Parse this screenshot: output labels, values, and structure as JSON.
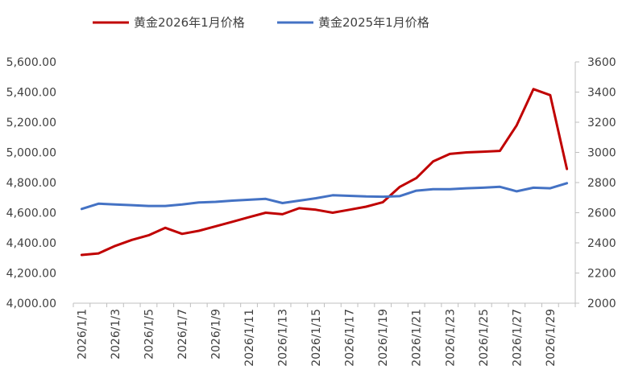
{
  "chart_data": {
    "type": "line",
    "x": [
      "2026/1/1",
      "2026/1/2",
      "2026/1/3",
      "2026/1/4",
      "2026/1/5",
      "2026/1/6",
      "2026/1/7",
      "2026/1/8",
      "2026/1/9",
      "2026/1/10",
      "2026/1/11",
      "2026/1/12",
      "2026/1/13",
      "2026/1/14",
      "2026/1/15",
      "2026/1/16",
      "2026/1/17",
      "2026/1/18",
      "2026/1/19",
      "2026/1/20",
      "2026/1/21",
      "2026/1/22",
      "2026/1/23",
      "2026/1/24",
      "2026/1/25",
      "2026/1/26",
      "2026/1/27",
      "2026/1/28",
      "2026/1/29",
      "2026/1/30"
    ],
    "x_tick_labels": [
      "2026/1/1",
      "2026/1/3",
      "2026/1/5",
      "2026/1/7",
      "2026/1/9",
      "2026/1/11",
      "2026/1/13",
      "2026/1/15",
      "2026/1/17",
      "2026/1/19",
      "2026/1/21",
      "2026/1/23",
      "2026/1/25",
      "2026/1/27",
      "2026/1/29"
    ],
    "series": [
      {
        "name": "黄金2026年1月价格",
        "axis": "left",
        "color": "#C00000",
        "values": [
          4320,
          4330,
          4380,
          4420,
          4450,
          4500,
          4460,
          4480,
          4510,
          4540,
          4570,
          4600,
          4590,
          4630,
          4620,
          4600,
          4620,
          4640,
          4670,
          4770,
          4830,
          4940,
          4990,
          5000,
          5005,
          5010,
          5180,
          5420,
          5380,
          4890
        ]
      },
      {
        "name": "黄金2025年1月价格",
        "axis": "right",
        "color": "#4472C4",
        "values": [
          2625,
          2660,
          2655,
          2650,
          2645,
          2645,
          2655,
          2668,
          2672,
          2680,
          2686,
          2692,
          2664,
          2680,
          2696,
          2716,
          2712,
          2708,
          2706,
          2710,
          2746,
          2756,
          2756,
          2762,
          2766,
          2772,
          2742,
          2766,
          2762,
          2796
        ]
      }
    ],
    "y_left": {
      "min": 4000,
      "max": 5600,
      "step": 200,
      "tick_labels": [
        "4,000.00",
        "4,200.00",
        "4,400.00",
        "4,600.00",
        "4,800.00",
        "5,000.00",
        "5,200.00",
        "5,400.00",
        "5,600.00"
      ]
    },
    "y_right": {
      "min": 2000,
      "max": 3600,
      "step": 200,
      "tick_labels": [
        "2000",
        "2200",
        "2400",
        "2600",
        "2800",
        "3000",
        "3200",
        "3400",
        "3600"
      ]
    },
    "grid": false,
    "legend_position": "top"
  }
}
